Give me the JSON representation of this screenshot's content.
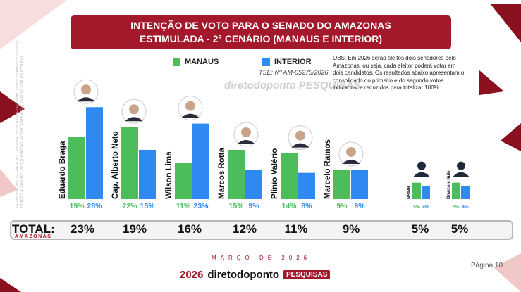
{
  "header": {
    "title_line1": "INTENÇÃO DE VOTO PARA O SENADO DO AMAZONAS",
    "title_line2": "ESTIMULADA - 2° CENÁRIO (MANAUS E INTERIOR)"
  },
  "legend": {
    "manaus": "MANAUS",
    "interior": "INTERIOR"
  },
  "tse": "TSE: Nº AM-05275/2026",
  "watermark_brand": "diretodoponto PESQUISAS",
  "obs": "OBS: Em 2026 serão eleitos dois senadores pelo Amazonas, ou seja, cada eleitor poderá votar em dois candidatos. Os resultados abaixo apresentam o consolidado do primeiro e do segundo votos indicados, e reduzidos para totalizar 100%.",
  "side_note": "PESQUISA REGISTRADA NO TRIBUNAL SUPERIOR ELEITORAL SOB O Nº AM-05275/2026 O DIRETO AO PONTO PESQUISAS FOI A CONTRATANTE E EXECUTORA DA ESTUDO",
  "colors": {
    "manaus": "#4dbd5c",
    "interior": "#2e8af0",
    "brand": "#a3182a"
  },
  "chart_data": {
    "type": "bar",
    "categories": [
      "Eduardo Braga",
      "Cap. Alberto Neto",
      "Wilson Lima",
      "Marcos Rotta",
      "Plínio Valério",
      "Marcelo Ramos",
      "NS/NR",
      "Branco e Nulo"
    ],
    "series": [
      {
        "name": "MANAUS",
        "values": [
          19,
          22,
          11,
          15,
          14,
          9,
          5,
          5
        ]
      },
      {
        "name": "INTERIOR",
        "values": [
          28,
          15,
          23,
          9,
          8,
          9,
          4,
          4
        ]
      }
    ],
    "value_labels_manaus": [
      "19%",
      "22%",
      "11%",
      "15%",
      "14%",
      "9%",
      "5%",
      "5%"
    ],
    "value_labels_interior": [
      "28%",
      "15%",
      "23%",
      "9%",
      "8%",
      "9%",
      "4%",
      "4%"
    ],
    "totals_label": "TOTAL:",
    "totals_sublabel": "AMAZONAS",
    "totals": [
      "23%",
      "19%",
      "16%",
      "12%",
      "11%",
      "9%",
      "5%",
      "5%"
    ],
    "ylim": [
      0,
      30
    ]
  },
  "footer": {
    "date": "MARÇO DE 2026",
    "brand_year": "2026",
    "brand_name": "diretodoponto",
    "brand_tag": "PESQUISAS",
    "page": "Página 10"
  }
}
